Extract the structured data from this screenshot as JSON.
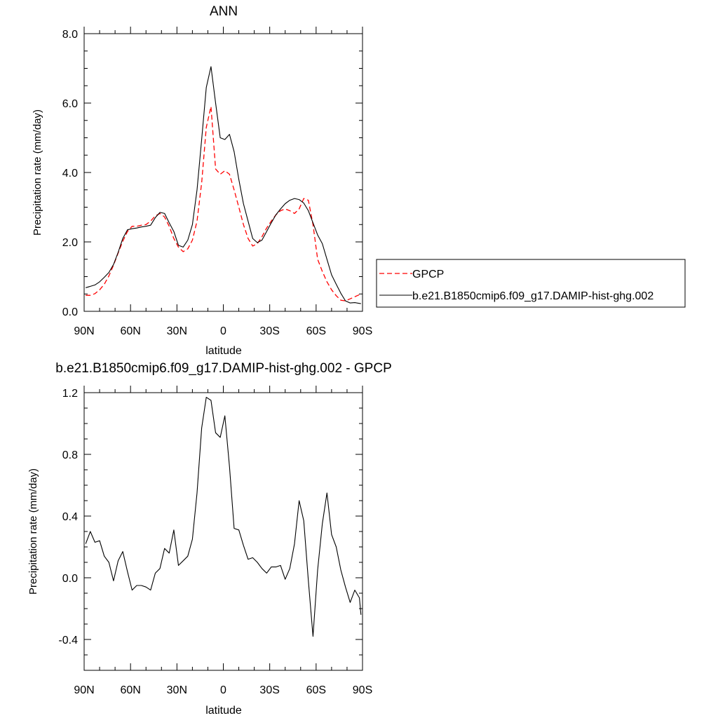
{
  "chart_data": [
    {
      "type": "line",
      "title": "ANN",
      "xlabel": "latitude",
      "ylabel": "Precipitation rate (mm/day)",
      "xlim": [
        90,
        -90
      ],
      "ylim": [
        0,
        8
      ],
      "x_ticks": [
        {
          "value": 90,
          "label": "90N"
        },
        {
          "value": 60,
          "label": "60N"
        },
        {
          "value": 30,
          "label": "30N"
        },
        {
          "value": 0,
          "label": "0"
        },
        {
          "value": -30,
          "label": "30S"
        },
        {
          "value": -60,
          "label": "60S"
        },
        {
          "value": -90,
          "label": "90S"
        }
      ],
      "y_ticks": [
        {
          "value": 0,
          "label": "0.0"
        },
        {
          "value": 2,
          "label": "2.0"
        },
        {
          "value": 4,
          "label": "4.0"
        },
        {
          "value": 6,
          "label": "6.0"
        },
        {
          "value": 8,
          "label": "8.0"
        }
      ],
      "legend": {
        "placement": "right"
      },
      "series": [
        {
          "name": "GPCP",
          "color": "#ff0000",
          "dash": true,
          "x": [
            89,
            86,
            83,
            80,
            77,
            74,
            71,
            68,
            65,
            62,
            59,
            56,
            53,
            50,
            47,
            44,
            41,
            38,
            35,
            32,
            29,
            26,
            23,
            20,
            17,
            14,
            11,
            8,
            5,
            2,
            -1,
            -4,
            -7,
            -10,
            -13,
            -16,
            -19,
            -22,
            -25,
            -28,
            -31,
            -34,
            -37,
            -40,
            -43,
            -46,
            -49,
            -52,
            -55,
            -58,
            -61,
            -64,
            -67,
            -70,
            -73,
            -76,
            -79,
            -82,
            -85,
            -89
          ],
          "values": [
            0.46,
            0.46,
            0.51,
            0.62,
            0.78,
            1.02,
            1.33,
            1.68,
            2.02,
            2.3,
            2.45,
            2.45,
            2.48,
            2.5,
            2.6,
            2.75,
            2.82,
            2.72,
            2.45,
            2.1,
            1.85,
            1.72,
            1.8,
            2.05,
            2.6,
            3.7,
            5.3,
            5.9,
            4.1,
            3.95,
            4.05,
            3.95,
            3.5,
            3.0,
            2.5,
            2.1,
            1.88,
            1.95,
            2.15,
            2.4,
            2.6,
            2.78,
            2.9,
            2.95,
            2.9,
            2.82,
            2.95,
            3.25,
            3.2,
            2.5,
            1.5,
            1.15,
            0.85,
            0.62,
            0.45,
            0.32,
            0.3,
            0.36,
            0.42,
            0.5
          ]
        },
        {
          "name": "b.e21.B1850cmip6.f09_g17.DAMIP-hist-ghg.002",
          "color": "#000000",
          "dash": false,
          "x": [
            89,
            86,
            83,
            80,
            77,
            74,
            71,
            68,
            65,
            62,
            59,
            56,
            53,
            50,
            47,
            44,
            41,
            38,
            35,
            32,
            29,
            26,
            23,
            20,
            17,
            14,
            11,
            8,
            5,
            2,
            -1,
            -4,
            -7,
            -10,
            -13,
            -16,
            -19,
            -22,
            -25,
            -28,
            -31,
            -34,
            -37,
            -40,
            -43,
            -46,
            -49,
            -52,
            -55,
            -58,
            -61,
            -64,
            -67,
            -70,
            -73,
            -76,
            -79,
            -82,
            -85,
            -89
          ],
          "values": [
            0.68,
            0.72,
            0.76,
            0.85,
            0.98,
            1.12,
            1.35,
            1.7,
            2.1,
            2.35,
            2.38,
            2.4,
            2.43,
            2.45,
            2.48,
            2.7,
            2.85,
            2.82,
            2.55,
            2.3,
            1.9,
            1.85,
            2.05,
            2.5,
            3.5,
            4.95,
            6.45,
            7.05,
            6.0,
            5.0,
            4.95,
            5.1,
            4.6,
            3.8,
            3.1,
            2.6,
            2.1,
            1.98,
            2.05,
            2.3,
            2.55,
            2.78,
            2.95,
            3.1,
            3.2,
            3.25,
            3.22,
            3.12,
            2.9,
            2.55,
            2.2,
            1.95,
            1.5,
            1.05,
            0.78,
            0.52,
            0.3,
            0.24,
            0.25,
            0.22
          ]
        }
      ]
    },
    {
      "type": "line",
      "title": "b.e21.B1850cmip6.f09_g17.DAMIP-hist-ghg.002 - GPCP",
      "xlabel": "latitude",
      "ylabel": "Precipitation rate (mm/day)",
      "xlim": [
        90,
        -90
      ],
      "ylim": [
        -0.6,
        1.2
      ],
      "x_ticks": [
        {
          "value": 90,
          "label": "90N"
        },
        {
          "value": 60,
          "label": "60N"
        },
        {
          "value": 30,
          "label": "30N"
        },
        {
          "value": 0,
          "label": "0"
        },
        {
          "value": -30,
          "label": "30S"
        },
        {
          "value": -60,
          "label": "60S"
        },
        {
          "value": -90,
          "label": "90S"
        }
      ],
      "y_ticks": [
        {
          "value": -0.4,
          "label": "-0.4"
        },
        {
          "value": 0.0,
          "label": "0.0"
        },
        {
          "value": 0.4,
          "label": "0.4"
        },
        {
          "value": 0.8,
          "label": "0.8"
        },
        {
          "value": 1.2,
          "label": "1.2"
        }
      ],
      "series": [
        {
          "color": "#000000",
          "dash": false,
          "x": [
            89,
            86,
            83,
            80,
            77,
            74,
            71,
            68,
            65,
            62,
            59,
            56,
            53,
            50,
            47,
            44,
            41,
            38,
            35,
            32,
            29,
            26,
            23,
            20,
            17,
            14,
            11,
            8,
            5,
            2,
            -1,
            -4,
            -7,
            -10,
            -13,
            -16,
            -19,
            -22,
            -25,
            -28,
            -31,
            -34,
            -37,
            -40,
            -43,
            -46,
            -49,
            -52,
            -55,
            -58,
            -61,
            -64,
            -67,
            -70,
            -73,
            -76,
            -79,
            -82,
            -85,
            -88,
            -89
          ],
          "values": [
            0.22,
            0.3,
            0.23,
            0.24,
            0.14,
            0.1,
            -0.02,
            0.11,
            0.17,
            0.04,
            -0.08,
            -0.05,
            -0.05,
            -0.06,
            -0.08,
            0.03,
            0.06,
            0.19,
            0.16,
            0.31,
            0.08,
            0.11,
            0.14,
            0.25,
            0.55,
            0.97,
            1.17,
            1.15,
            0.94,
            0.91,
            1.05,
            0.72,
            0.32,
            0.31,
            0.21,
            0.12,
            0.13,
            0.1,
            0.06,
            0.03,
            0.07,
            0.07,
            0.08,
            -0.01,
            0.06,
            0.22,
            0.5,
            0.37,
            -0.02,
            -0.38,
            0.05,
            0.35,
            0.55,
            0.28,
            0.2,
            0.05,
            -0.06,
            -0.16,
            -0.08,
            -0.13,
            -0.24
          ]
        }
      ]
    }
  ]
}
